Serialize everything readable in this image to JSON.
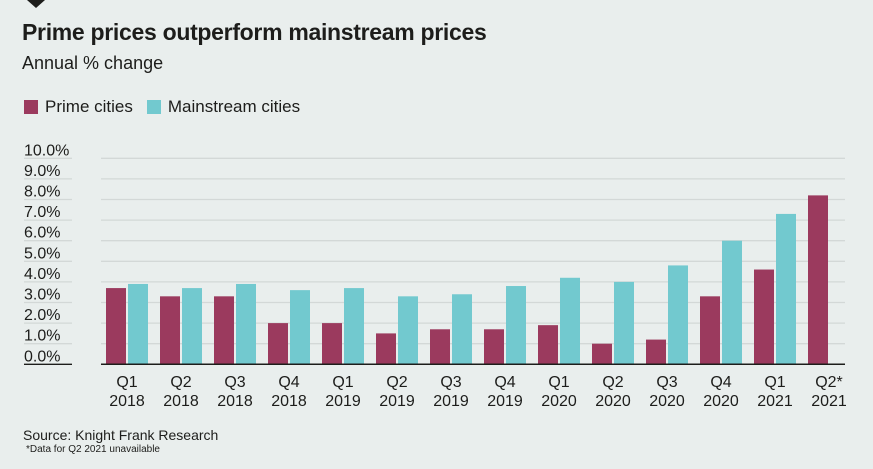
{
  "header": {
    "title": "Prime prices outperform mainstream prices",
    "subtitle": "Annual % change"
  },
  "legend": [
    {
      "label": "Prime cities",
      "color": "#9b3a5e"
    },
    {
      "label": "Mainstream cities",
      "color": "#72c9cf"
    }
  ],
  "footer": {
    "source": "Source: Knight Frank Research",
    "note": "*Data for Q2 2021 unavailable"
  },
  "chart_data": {
    "type": "bar",
    "title": "Prime prices outperform mainstream prices",
    "subtitle": "Annual % change",
    "xlabel": "",
    "ylabel": "",
    "ylim": [
      0,
      10
    ],
    "y_ticks": [
      "0.0%",
      "1.0%",
      "2.0%",
      "3.0%",
      "4.0%",
      "5.0%",
      "6.0%",
      "7.0%",
      "8.0%",
      "9.0%",
      "10.0%"
    ],
    "grid": true,
    "legend_position": "top-left",
    "categories": [
      [
        "Q1",
        "2018"
      ],
      [
        "Q2",
        "2018"
      ],
      [
        "Q3",
        "2018"
      ],
      [
        "Q4",
        "2018"
      ],
      [
        "Q1",
        "2019"
      ],
      [
        "Q2",
        "2019"
      ],
      [
        "Q3",
        "2019"
      ],
      [
        "Q4",
        "2019"
      ],
      [
        "Q1",
        "2020"
      ],
      [
        "Q2",
        "2020"
      ],
      [
        "Q3",
        "2020"
      ],
      [
        "Q4",
        "2020"
      ],
      [
        "Q1",
        "2021"
      ],
      [
        "Q2*",
        "2021"
      ]
    ],
    "series": [
      {
        "name": "Prime cities",
        "color": "#9b3a5e",
        "values": [
          3.7,
          3.3,
          3.3,
          2.0,
          2.0,
          1.5,
          1.7,
          1.7,
          1.9,
          1.0,
          1.2,
          3.3,
          4.6,
          8.2
        ]
      },
      {
        "name": "Mainstream cities",
        "color": "#72c9cf",
        "values": [
          3.9,
          3.7,
          3.9,
          3.6,
          3.7,
          3.3,
          3.4,
          3.8,
          4.2,
          4.0,
          4.8,
          6.0,
          7.3,
          null
        ]
      }
    ]
  }
}
